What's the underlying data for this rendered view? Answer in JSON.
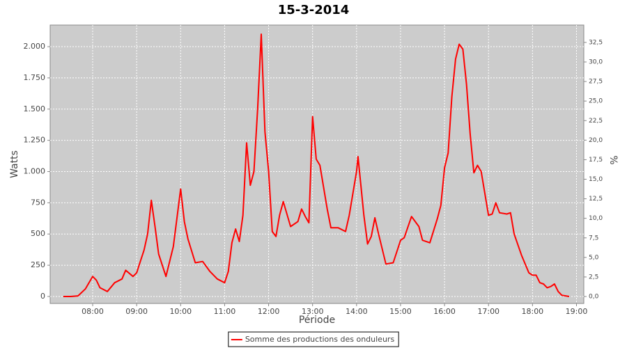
{
  "chart_data": {
    "type": "line",
    "title": "15-3-2014",
    "x_label": "Période",
    "y_label": "Watts",
    "y2_label": "%",
    "x": [
      "07:20",
      "07:30",
      "07:40",
      "07:50",
      "08:00",
      "08:05",
      "08:10",
      "08:20",
      "08:30",
      "08:40",
      "08:45",
      "08:55",
      "09:00",
      "09:05",
      "09:10",
      "09:15",
      "09:20",
      "09:25",
      "09:30",
      "09:40",
      "09:50",
      "10:00",
      "10:05",
      "10:10",
      "10:20",
      "10:30",
      "10:40",
      "10:50",
      "11:00",
      "11:05",
      "11:10",
      "11:15",
      "11:20",
      "11:25",
      "11:30",
      "11:35",
      "11:40",
      "11:45",
      "11:50",
      "11:55",
      "12:00",
      "12:05",
      "12:10",
      "12:15",
      "12:20",
      "12:30",
      "12:40",
      "12:45",
      "12:50",
      "12:55",
      "13:00",
      "13:05",
      "13:10",
      "13:20",
      "13:25",
      "13:35",
      "13:45",
      "13:50",
      "14:00",
      "14:02",
      "14:10",
      "14:15",
      "14:20",
      "14:25",
      "14:30",
      "14:40",
      "14:50",
      "15:00",
      "15:05",
      "15:15",
      "15:25",
      "15:30",
      "15:40",
      "15:50",
      "15:55",
      "16:00",
      "16:05",
      "16:10",
      "16:15",
      "16:20",
      "16:25",
      "16:30",
      "16:35",
      "16:40",
      "16:45",
      "16:50",
      "17:00",
      "17:05",
      "17:10",
      "17:15",
      "17:25",
      "17:30",
      "17:35",
      "17:45",
      "17:55",
      "18:00",
      "18:05",
      "18:10",
      "18:15",
      "18:20",
      "18:25",
      "18:30",
      "18:35",
      "18:40",
      "18:50"
    ],
    "series": [
      {
        "name": "Somme des productions des onduleurs",
        "color": "#ff0000",
        "values": [
          0,
          0,
          5,
          60,
          160,
          130,
          70,
          40,
          110,
          140,
          210,
          160,
          190,
          280,
          370,
          500,
          770,
          560,
          340,
          160,
          400,
          860,
          600,
          460,
          270,
          280,
          200,
          140,
          110,
          200,
          430,
          540,
          440,
          650,
          1230,
          890,
          1000,
          1500,
          2100,
          1320,
          1000,
          520,
          480,
          650,
          760,
          560,
          600,
          700,
          640,
          590,
          1440,
          1100,
          1050,
          700,
          550,
          550,
          520,
          650,
          1000,
          1120,
          650,
          420,
          480,
          630,
          500,
          260,
          270,
          450,
          470,
          640,
          560,
          450,
          430,
          620,
          730,
          1030,
          1150,
          1600,
          1900,
          2020,
          1980,
          1700,
          1300,
          990,
          1050,
          1000,
          650,
          660,
          750,
          670,
          660,
          670,
          500,
          330,
          190,
          170,
          170,
          110,
          100,
          70,
          80,
          100,
          40,
          10,
          0
        ]
      }
    ],
    "xlim": [
      "07:02",
      "19:10"
    ],
    "xticks": [
      "08:00",
      "09:00",
      "10:00",
      "11:00",
      "12:00",
      "13:00",
      "14:00",
      "15:00",
      "16:00",
      "17:00",
      "18:00",
      "19:00"
    ],
    "ylim": [
      -56,
      2173
    ],
    "yticks": [
      0,
      250,
      500,
      750,
      {
        "value": 1000,
        "label": "1.000"
      },
      {
        "value": 1250,
        "label": "1.250"
      },
      {
        "value": 1500,
        "label": "1.500"
      },
      {
        "value": 1750,
        "label": "1.750"
      },
      {
        "value": 2000,
        "label": "2.000"
      }
    ],
    "y2lim": [
      -0.89,
      34.72
    ],
    "y2ticks": [
      {
        "value": 0,
        "label": "0,0"
      },
      {
        "value": 2.5,
        "label": "2,5"
      },
      {
        "value": 5,
        "label": "5,0"
      },
      {
        "value": 7.5,
        "label": "7,5"
      },
      {
        "value": 10,
        "label": "10,0"
      },
      {
        "value": 12.5,
        "label": "12,5"
      },
      {
        "value": 15,
        "label": "15,0"
      },
      {
        "value": 17.5,
        "label": "17,5"
      },
      {
        "value": 20,
        "label": "20,0"
      },
      {
        "value": 22.5,
        "label": "22,5"
      },
      {
        "value": 25,
        "label": "25,0"
      },
      {
        "value": 27.5,
        "label": "27,5"
      },
      {
        "value": 30,
        "label": "30,0"
      },
      {
        "value": 32.5,
        "label": "32,5"
      }
    ],
    "grid": true,
    "legend": "bottom"
  }
}
